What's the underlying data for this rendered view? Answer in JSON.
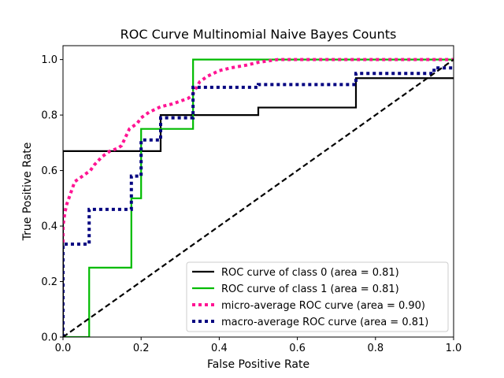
{
  "chart_data": {
    "type": "line",
    "title": "ROC Curve Multinomial Naive Bayes Counts",
    "xlabel": "False Positive Rate",
    "ylabel": "True Positive Rate",
    "xlim": [
      0.0,
      1.0
    ],
    "ylim": [
      0.0,
      1.05
    ],
    "x_ticks": [
      "0.0",
      "0.2",
      "0.4",
      "0.6",
      "0.8",
      "1.0"
    ],
    "y_ticks": [
      "0.0",
      "0.2",
      "0.4",
      "0.6",
      "0.8",
      "1.0"
    ],
    "grid": false,
    "legend_position": "lower-right",
    "series": [
      {
        "name": "ROC curve of class 0 (area = 0.81)",
        "color": "#000000",
        "style": "solid",
        "x": [
          0.0,
          0.0,
          0.25,
          0.25,
          0.5,
          0.5,
          0.75,
          0.75,
          1.0
        ],
        "y": [
          0.0,
          0.67,
          0.67,
          0.8,
          0.8,
          0.827,
          0.827,
          0.933,
          0.933
        ]
      },
      {
        "name": "ROC curve of class 1 (area = 0.81)",
        "color": "#00bb00",
        "style": "solid",
        "x": [
          0.0,
          0.067,
          0.067,
          0.175,
          0.175,
          0.2,
          0.2,
          0.333,
          0.333,
          1.0
        ],
        "y": [
          0.0,
          0.0,
          0.25,
          0.25,
          0.5,
          0.5,
          0.75,
          0.75,
          1.0,
          1.0
        ]
      },
      {
        "name": "micro-average ROC curve (area = 0.90)",
        "color": "#ff1493",
        "style": "dotted",
        "x": [
          0.0,
          0.0,
          0.005,
          0.01,
          0.015,
          0.02,
          0.03,
          0.04,
          0.05,
          0.06,
          0.07,
          0.08,
          0.1,
          0.12,
          0.14,
          0.15,
          0.16,
          0.17,
          0.18,
          0.19,
          0.2,
          0.22,
          0.25,
          0.28,
          0.3,
          0.32,
          0.33,
          0.35,
          0.37,
          0.4,
          0.43,
          0.47,
          0.5,
          0.55,
          0.6,
          0.7,
          0.8,
          0.9,
          1.0
        ],
        "y": [
          0.0,
          0.4,
          0.45,
          0.48,
          0.5,
          0.52,
          0.56,
          0.57,
          0.58,
          0.59,
          0.6,
          0.62,
          0.65,
          0.67,
          0.68,
          0.69,
          0.72,
          0.75,
          0.76,
          0.77,
          0.79,
          0.81,
          0.83,
          0.84,
          0.85,
          0.86,
          0.87,
          0.92,
          0.94,
          0.96,
          0.97,
          0.98,
          0.99,
          1.0,
          1.0,
          1.0,
          1.0,
          1.0,
          1.0
        ]
      },
      {
        "name": "macro-average ROC curve (area = 0.81)",
        "color": "#000080",
        "style": "dotted",
        "x": [
          0.0,
          0.0,
          0.067,
          0.067,
          0.175,
          0.175,
          0.2,
          0.2,
          0.25,
          0.25,
          0.333,
          0.333,
          0.5,
          0.5,
          0.75,
          0.75,
          0.95,
          0.95,
          1.0
        ],
        "y": [
          0.0,
          0.335,
          0.335,
          0.46,
          0.46,
          0.58,
          0.58,
          0.71,
          0.71,
          0.79,
          0.79,
          0.9,
          0.9,
          0.91,
          0.91,
          0.95,
          0.95,
          0.97,
          0.97
        ]
      },
      {
        "name": "",
        "color": "#000000",
        "style": "dashed",
        "x": [
          0.0,
          1.0
        ],
        "y": [
          0.0,
          1.0
        ]
      }
    ]
  }
}
